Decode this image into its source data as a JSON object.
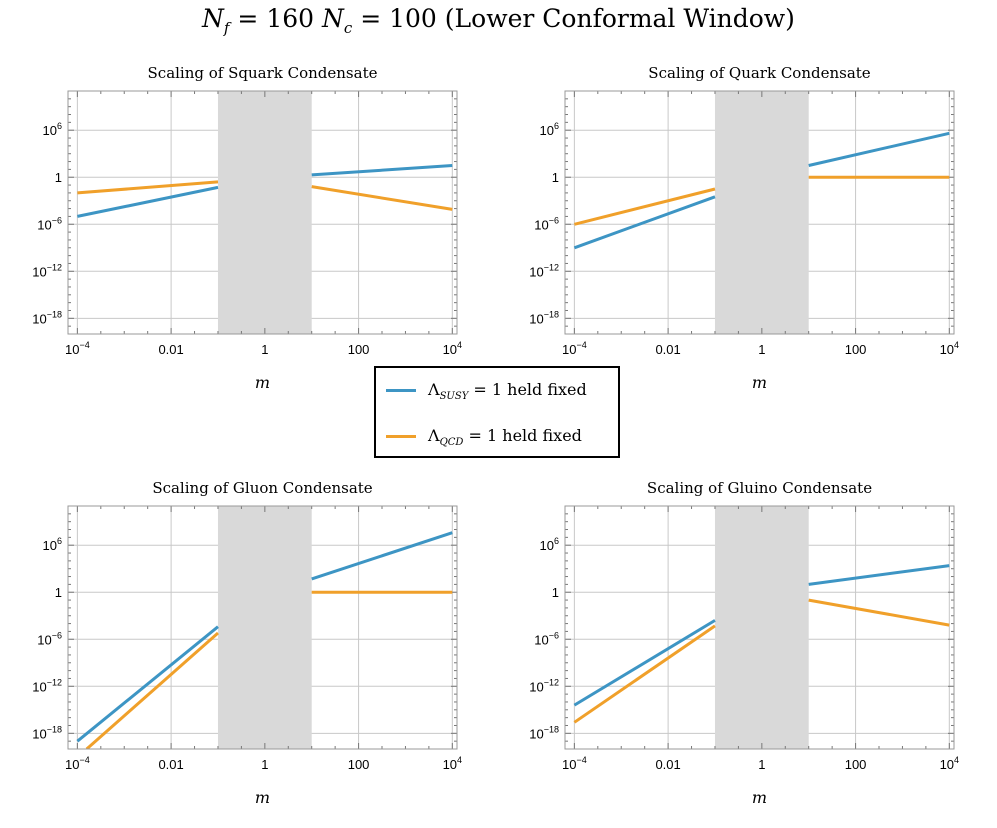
{
  "figure": {
    "title_prefix": "N",
    "title_f_sub": "f",
    "title_mid": " = 160 ",
    "title_N": "N",
    "title_c_sub": "c",
    "title_suffix": " = 100 (Lower Conformal Window)"
  },
  "legend": {
    "position": "center",
    "entries": [
      {
        "symbol": "Λ",
        "sub": "SUSY",
        "text": " = 1 held fixed",
        "color": "#3d95c4"
      },
      {
        "symbol": "Λ",
        "sub": "QCD",
        "text": " = 1 held fixed",
        "color": "#f0a02a"
      }
    ]
  },
  "colors": {
    "susy": "#3d95c4",
    "qcd": "#f0a02a",
    "shade": "#d9d9d9",
    "grid": "#c8c8c8"
  },
  "chart_data": [
    {
      "type": "line",
      "title": "Scaling of Squark Condensate",
      "xlabel": "m",
      "ylabel": "",
      "xscale": "log",
      "yscale": "log",
      "xlim_log10": [
        -4.2,
        4.1
      ],
      "ylim_log10": [
        -20,
        11
      ],
      "x_ticks": [
        {
          "v": -4,
          "base": "10",
          "exp": "−4"
        },
        {
          "v": -2,
          "base": "0.01",
          "exp": ""
        },
        {
          "v": 0,
          "base": "1",
          "exp": ""
        },
        {
          "v": 2,
          "base": "100",
          "exp": ""
        },
        {
          "v": 4,
          "base": "10",
          "exp": "4"
        }
      ],
      "y_ticks": [
        {
          "v": 6,
          "base": "10",
          "exp": "6"
        },
        {
          "v": 0,
          "base": "1",
          "exp": ""
        },
        {
          "v": -6,
          "base": "10",
          "exp": "−6"
        },
        {
          "v": -12,
          "base": "10",
          "exp": "−12"
        },
        {
          "v": -18,
          "base": "10",
          "exp": "−18"
        }
      ],
      "shaded_region_log10": [
        -1,
        1
      ],
      "series": [
        {
          "name": "Λ_SUSY = 1 held fixed",
          "color_key": "susy",
          "segments": [
            [
              [
                -4,
                -5
              ],
              [
                -1,
                -1.3
              ]
            ],
            [
              [
                1,
                0.3
              ],
              [
                4,
                1.5
              ]
            ]
          ]
        },
        {
          "name": "Λ_QCD = 1 held fixed",
          "color_key": "qcd",
          "segments": [
            [
              [
                -4,
                -2
              ],
              [
                -1,
                -0.6
              ]
            ],
            [
              [
                1,
                -1.2
              ],
              [
                4,
                -4.1
              ]
            ]
          ]
        }
      ]
    },
    {
      "type": "line",
      "title": "Scaling of Quark Condensate",
      "xlabel": "m",
      "ylabel": "",
      "xscale": "log",
      "yscale": "log",
      "xlim_log10": [
        -4.2,
        4.1
      ],
      "ylim_log10": [
        -20,
        11
      ],
      "x_ticks": [
        {
          "v": -4,
          "base": "10",
          "exp": "−4"
        },
        {
          "v": -2,
          "base": "0.01",
          "exp": ""
        },
        {
          "v": 0,
          "base": "1",
          "exp": ""
        },
        {
          "v": 2,
          "base": "100",
          "exp": ""
        },
        {
          "v": 4,
          "base": "10",
          "exp": "4"
        }
      ],
      "y_ticks": [
        {
          "v": 6,
          "base": "10",
          "exp": "6"
        },
        {
          "v": 0,
          "base": "1",
          "exp": ""
        },
        {
          "v": -6,
          "base": "10",
          "exp": "−6"
        },
        {
          "v": -12,
          "base": "10",
          "exp": "−12"
        },
        {
          "v": -18,
          "base": "10",
          "exp": "−18"
        }
      ],
      "shaded_region_log10": [
        -1,
        1
      ],
      "series": [
        {
          "name": "Λ_SUSY = 1 held fixed",
          "color_key": "susy",
          "segments": [
            [
              [
                -4,
                -9
              ],
              [
                -1,
                -2.5
              ]
            ],
            [
              [
                1,
                1.5
              ],
              [
                4,
                5.6
              ]
            ]
          ]
        },
        {
          "name": "Λ_QCD = 1 held fixed",
          "color_key": "qcd",
          "segments": [
            [
              [
                -4,
                -6
              ],
              [
                -1,
                -1.5
              ]
            ],
            [
              [
                1,
                0
              ],
              [
                4,
                0
              ]
            ]
          ]
        }
      ]
    },
    {
      "type": "line",
      "title": "Scaling of Gluon Condensate",
      "xlabel": "m",
      "ylabel": "",
      "xscale": "log",
      "yscale": "log",
      "xlim_log10": [
        -4.2,
        4.1
      ],
      "ylim_log10": [
        -20,
        11
      ],
      "x_ticks": [
        {
          "v": -4,
          "base": "10",
          "exp": "−4"
        },
        {
          "v": -2,
          "base": "0.01",
          "exp": ""
        },
        {
          "v": 0,
          "base": "1",
          "exp": ""
        },
        {
          "v": 2,
          "base": "100",
          "exp": ""
        },
        {
          "v": 4,
          "base": "10",
          "exp": "4"
        }
      ],
      "y_ticks": [
        {
          "v": 6,
          "base": "10",
          "exp": "6"
        },
        {
          "v": 0,
          "base": "1",
          "exp": ""
        },
        {
          "v": -6,
          "base": "10",
          "exp": "−6"
        },
        {
          "v": -12,
          "base": "10",
          "exp": "−12"
        },
        {
          "v": -18,
          "base": "10",
          "exp": "−18"
        }
      ],
      "shaded_region_log10": [
        -1,
        1
      ],
      "series": [
        {
          "name": "Λ_SUSY = 1 held fixed",
          "color_key": "susy",
          "segments": [
            [
              [
                -4,
                -19
              ],
              [
                -1,
                -4.4
              ]
            ],
            [
              [
                1,
                1.7
              ],
              [
                4,
                7.6
              ]
            ]
          ]
        },
        {
          "name": "Λ_QCD = 1 held fixed",
          "color_key": "qcd",
          "segments": [
            [
              [
                -3.8,
                -20
              ],
              [
                -1,
                -5.2
              ]
            ],
            [
              [
                1,
                0
              ],
              [
                4,
                0
              ]
            ]
          ]
        }
      ]
    },
    {
      "type": "line",
      "title": "Scaling of Gluino Condensate",
      "xlabel": "m",
      "ylabel": "",
      "xscale": "log",
      "yscale": "log",
      "xlim_log10": [
        -4.2,
        4.1
      ],
      "ylim_log10": [
        -20,
        11
      ],
      "x_ticks": [
        {
          "v": -4,
          "base": "10",
          "exp": "−4"
        },
        {
          "v": -2,
          "base": "0.01",
          "exp": ""
        },
        {
          "v": 0,
          "base": "1",
          "exp": ""
        },
        {
          "v": 2,
          "base": "100",
          "exp": ""
        },
        {
          "v": 4,
          "base": "10",
          "exp": "4"
        }
      ],
      "y_ticks": [
        {
          "v": 6,
          "base": "10",
          "exp": "6"
        },
        {
          "v": 0,
          "base": "1",
          "exp": ""
        },
        {
          "v": -6,
          "base": "10",
          "exp": "−6"
        },
        {
          "v": -12,
          "base": "10",
          "exp": "−12"
        },
        {
          "v": -18,
          "base": "10",
          "exp": "−18"
        }
      ],
      "shaded_region_log10": [
        -1,
        1
      ],
      "series": [
        {
          "name": "Λ_SUSY = 1 held fixed",
          "color_key": "susy",
          "segments": [
            [
              [
                -4,
                -14.4
              ],
              [
                -1,
                -3.6
              ]
            ],
            [
              [
                1,
                1
              ],
              [
                4,
                3.4
              ]
            ]
          ]
        },
        {
          "name": "Λ_QCD = 1 held fixed",
          "color_key": "qcd",
          "segments": [
            [
              [
                -4,
                -16.6
              ],
              [
                -1,
                -4.3
              ]
            ],
            [
              [
                1,
                -1
              ],
              [
                4,
                -4.2
              ]
            ]
          ]
        }
      ]
    }
  ]
}
